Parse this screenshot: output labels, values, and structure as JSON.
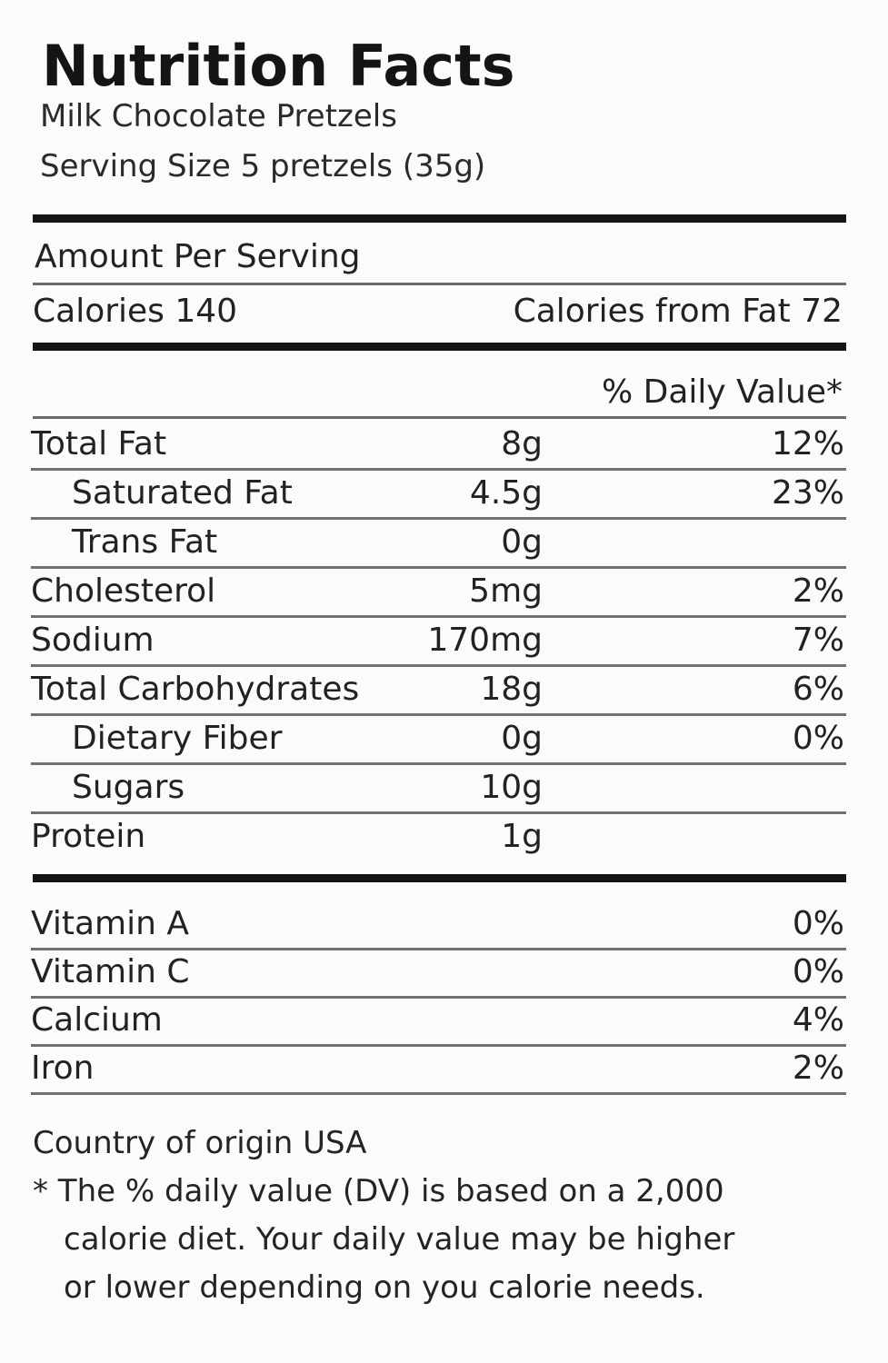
{
  "header": {
    "title": "Nutrition Facts",
    "product": "Milk Chocolate Pretzels",
    "serving_size": "Serving Size 5 pretzels (35g)"
  },
  "amount_per_serving": "Amount Per Serving",
  "calories": "Calories 140",
  "calories_from_fat": "Calories from Fat 72",
  "daily_value_header": "% Daily Value*",
  "nutrients": [
    {
      "name": "Total Fat",
      "amount": "8g",
      "dv": "12%"
    },
    {
      "name": "Saturated Fat",
      "amount": "4.5g",
      "dv": "23%"
    },
    {
      "name": "Trans Fat",
      "amount": "0g",
      "dv": ""
    },
    {
      "name": "Cholesterol",
      "amount": "5mg",
      "dv": "2%"
    },
    {
      "name": "Sodium",
      "amount": "170mg",
      "dv": "7%"
    },
    {
      "name": "Total Carbohydrates",
      "amount": "18g",
      "dv": "6%"
    },
    {
      "name": "Dietary Fiber",
      "amount": "0g",
      "dv": "0%"
    },
    {
      "name": "Sugars",
      "amount": "10g",
      "dv": ""
    },
    {
      "name": "Protein",
      "amount": "1g",
      "dv": ""
    }
  ],
  "vitamins": [
    {
      "name": "Vitamin A",
      "dv": "0%"
    },
    {
      "name": "Vitamin C",
      "dv": "0%"
    },
    {
      "name": "Calcium",
      "dv": "4%"
    },
    {
      "name": "Iron",
      "dv": "2%"
    }
  ],
  "footer": {
    "origin": "Country of origin USA",
    "note_line1": "* The % daily value (DV) is based on a 2,000",
    "note_line2": "calorie diet. Your daily value may be higher",
    "note_line3": "or lower depending on you calorie needs."
  }
}
